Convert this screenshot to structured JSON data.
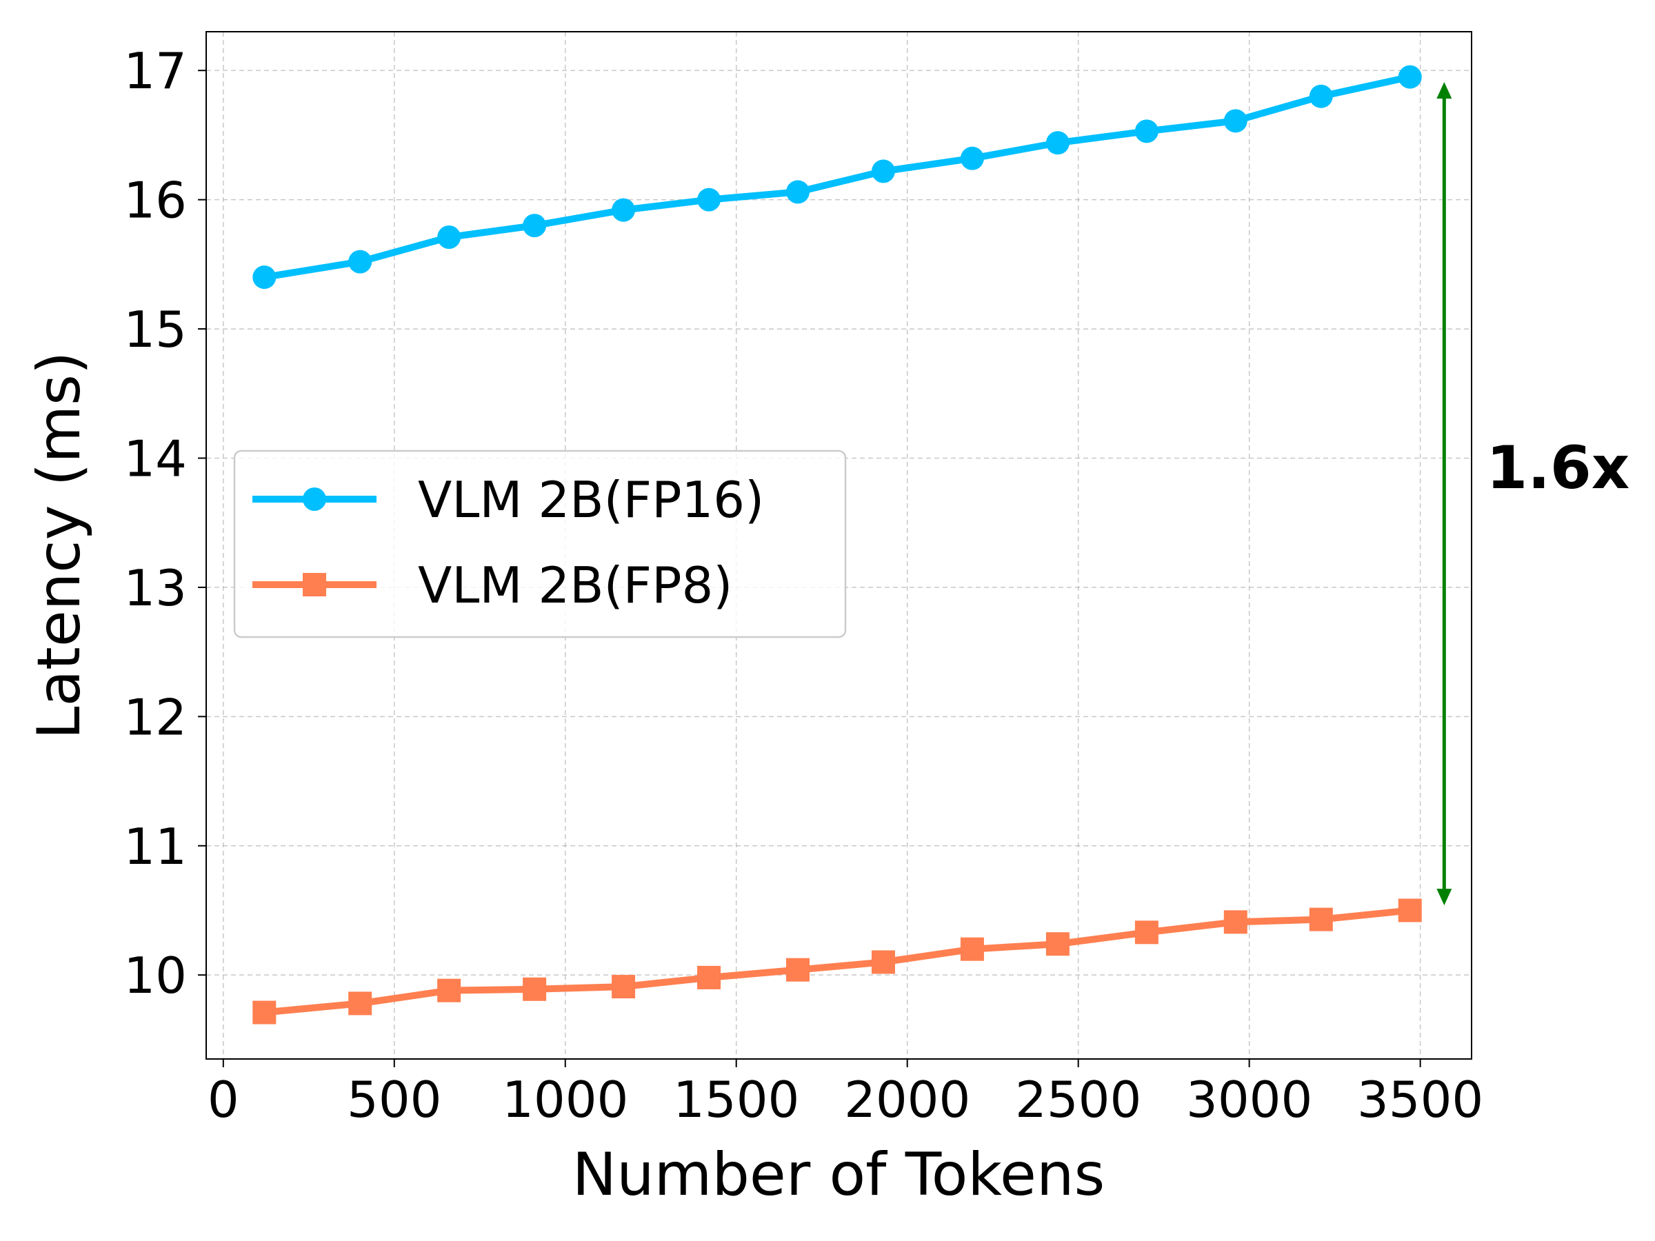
{
  "chart_data": {
    "type": "line",
    "title": "",
    "xlabel": "Number of Tokens",
    "ylabel": "Latency (ms)",
    "xlim": [
      -50,
      3650
    ],
    "ylim": [
      9.35,
      17.3
    ],
    "xticks": [
      0,
      500,
      1000,
      1500,
      2000,
      2500,
      3000,
      3500
    ],
    "yticks": [
      10,
      11,
      12,
      13,
      14,
      15,
      16,
      17
    ],
    "xtick_labels": [
      "0",
      "500",
      "1000",
      "1500",
      "2000",
      "2500",
      "3000",
      "3500"
    ],
    "ytick_labels": [
      "10",
      "11",
      "12",
      "13",
      "14",
      "15",
      "16",
      "17"
    ],
    "grid": true,
    "legend_position": "center-left",
    "series": [
      {
        "name": "VLM 2B(FP16)",
        "color": "#00BFFF",
        "marker": "circle",
        "x": [
          120,
          400,
          660,
          910,
          1170,
          1420,
          1680,
          1930,
          2190,
          2440,
          2700,
          2960,
          3210,
          3470
        ],
        "y": [
          15.4,
          15.52,
          15.71,
          15.8,
          15.92,
          16.0,
          16.06,
          16.22,
          16.32,
          16.44,
          16.53,
          16.61,
          16.8,
          16.95
        ]
      },
      {
        "name": "VLM 2B(FP8)",
        "color": "#FF7F50",
        "marker": "square",
        "x": [
          120,
          400,
          660,
          910,
          1170,
          1420,
          1680,
          1930,
          2190,
          2440,
          2700,
          2960,
          3210,
          3470
        ],
        "y": [
          9.71,
          9.78,
          9.88,
          9.89,
          9.91,
          9.98,
          10.04,
          10.1,
          10.2,
          10.24,
          10.33,
          10.41,
          10.43,
          10.5
        ]
      }
    ],
    "annotations": [
      {
        "text": "1.6x",
        "type": "double-arrow",
        "color": "#008000",
        "x": 3570,
        "y_from": 10.55,
        "y_to": 16.9
      }
    ]
  }
}
